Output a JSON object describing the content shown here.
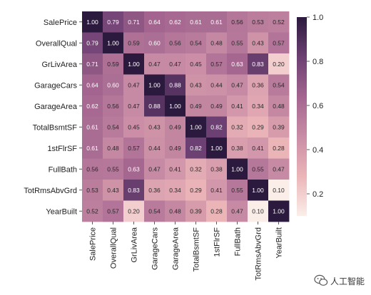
{
  "chart_data": {
    "type": "heatmap",
    "title": "",
    "xlabel": "",
    "ylabel": "",
    "x_labels": [
      "SalePrice",
      "OverallQual",
      "GrLivArea",
      "GarageCars",
      "GarageArea",
      "TotalBsmtSF",
      "1stFlrSF",
      "FullBath",
      "TotRmsAbvGrd",
      "YearBuilt"
    ],
    "y_labels": [
      "SalePrice",
      "OverallQual",
      "GrLivArea",
      "GarageCars",
      "GarageArea",
      "TotalBsmtSF",
      "1stFlrSF",
      "FullBath",
      "TotRmsAbvGrd",
      "YearBuilt"
    ],
    "values": [
      [
        1.0,
        0.79,
        0.71,
        0.64,
        0.62,
        0.61,
        0.61,
        0.56,
        0.53,
        0.52
      ],
      [
        0.79,
        1.0,
        0.59,
        0.6,
        0.56,
        0.54,
        0.48,
        0.55,
        0.43,
        0.57
      ],
      [
        0.71,
        0.59,
        1.0,
        0.47,
        0.47,
        0.45,
        0.57,
        0.63,
        0.83,
        0.2
      ],
      [
        0.64,
        0.6,
        0.47,
        1.0,
        0.88,
        0.43,
        0.44,
        0.47,
        0.36,
        0.54
      ],
      [
        0.62,
        0.56,
        0.47,
        0.88,
        1.0,
        0.49,
        0.49,
        0.41,
        0.34,
        0.48
      ],
      [
        0.61,
        0.54,
        0.45,
        0.43,
        0.49,
        1.0,
        0.82,
        0.32,
        0.29,
        0.39
      ],
      [
        0.61,
        0.48,
        0.57,
        0.44,
        0.49,
        0.82,
        1.0,
        0.38,
        0.41,
        0.28
      ],
      [
        0.56,
        0.55,
        0.63,
        0.47,
        0.41,
        0.32,
        0.38,
        1.0,
        0.55,
        0.47
      ],
      [
        0.53,
        0.43,
        0.83,
        0.36,
        0.34,
        0.29,
        0.41,
        0.55,
        1.0,
        0.1
      ],
      [
        0.52,
        0.57,
        0.2,
        0.54,
        0.48,
        0.39,
        0.28,
        0.47,
        0.1,
        1.0
      ]
    ],
    "value_format": "0.00",
    "colorbar": {
      "range": [
        0.1,
        1.0
      ],
      "ticks": [
        "0.2",
        "0.4",
        "0.6",
        "0.8",
        "1.0"
      ]
    },
    "colormap_stops": [
      "#fbeee9",
      "#ebb5b8",
      "#c98ca5",
      "#a3658f",
      "#6c4072",
      "#2c1a3e"
    ],
    "text_color_dark": "#262626",
    "text_color_light": "#ffffff"
  },
  "watermark": {
    "text": "人工智能",
    "icon": "wechat-icon"
  }
}
